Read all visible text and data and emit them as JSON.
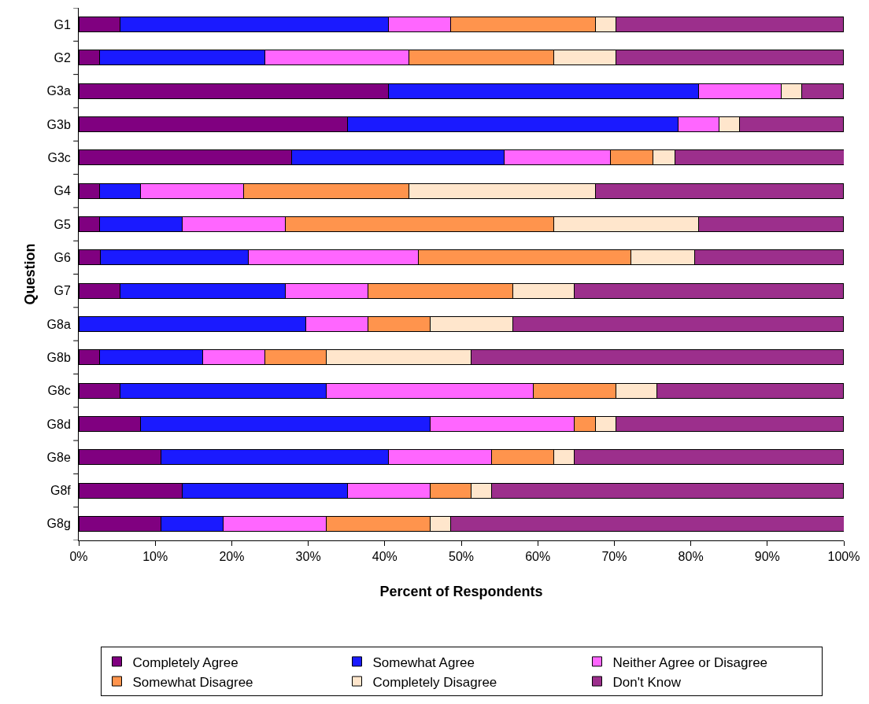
{
  "chart_data": {
    "type": "bar",
    "orientation": "horizontal",
    "stacked": true,
    "xlabel": "Percent of Respondents",
    "ylabel": "Question",
    "categories": [
      "G1",
      "G2",
      "G3a",
      "G3b",
      "G3c",
      "G4",
      "G5",
      "G6",
      "G7",
      "G8a",
      "G8b",
      "G8c",
      "G8d",
      "G8e",
      "G8f",
      "G8g"
    ],
    "xlim": [
      0,
      100
    ],
    "xticks": [
      {
        "value": 0,
        "label": "0%"
      },
      {
        "value": 10,
        "label": "10%"
      },
      {
        "value": 20,
        "label": "20%"
      },
      {
        "value": 30,
        "label": "30%"
      },
      {
        "value": 40,
        "label": "40%"
      },
      {
        "value": 50,
        "label": "50%"
      },
      {
        "value": 60,
        "label": "60%"
      },
      {
        "value": 70,
        "label": "70%"
      },
      {
        "value": 80,
        "label": "80%"
      },
      {
        "value": 90,
        "label": "90%"
      },
      {
        "value": 100,
        "label": "100%"
      }
    ],
    "grid": false,
    "legend": "bottom",
    "series": [
      {
        "name": "Completely Agree",
        "color": "#800080",
        "values": [
          5.4,
          2.7,
          40.5,
          35.1,
          27.8,
          2.7,
          2.7,
          2.8,
          5.4,
          0,
          2.7,
          5.4,
          8.1,
          10.8,
          13.5,
          10.8
        ]
      },
      {
        "name": "Somewhat Agree",
        "color": "#1a1aff",
        "values": [
          35.1,
          21.6,
          40.5,
          43.2,
          27.8,
          5.4,
          10.8,
          19.4,
          21.6,
          29.7,
          13.5,
          27.0,
          37.8,
          29.7,
          21.6,
          8.1
        ]
      },
      {
        "name": "Neither Agree or Disagree",
        "color": "#ff66ff",
        "values": [
          8.1,
          18.9,
          10.8,
          5.4,
          13.9,
          13.5,
          13.5,
          22.2,
          10.8,
          8.1,
          8.1,
          27.0,
          18.9,
          13.5,
          10.8,
          13.5
        ]
      },
      {
        "name": "Somewhat Disagree",
        "color": "#ff944d",
        "values": [
          18.9,
          18.9,
          0,
          0,
          5.6,
          21.6,
          35.1,
          27.8,
          18.9,
          8.1,
          8.1,
          10.8,
          2.7,
          8.1,
          5.4,
          13.5
        ]
      },
      {
        "name": "Completely Disagree",
        "color": "#ffe6cc",
        "values": [
          2.7,
          8.1,
          2.7,
          2.7,
          2.8,
          24.3,
          18.9,
          8.3,
          8.1,
          10.8,
          18.9,
          5.4,
          2.7,
          2.7,
          2.7,
          2.7
        ]
      },
      {
        "name": "Don't Know",
        "color": "#9c2f8c",
        "values": [
          29.7,
          29.7,
          5.4,
          13.5,
          22.2,
          32.4,
          18.9,
          19.4,
          35.1,
          43.2,
          48.6,
          24.3,
          29.7,
          35.1,
          45.9,
          51.4
        ]
      }
    ]
  }
}
